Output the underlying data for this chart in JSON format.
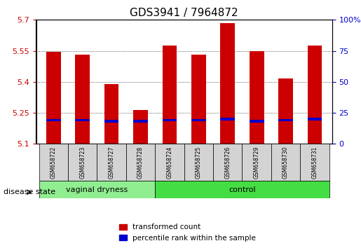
{
  "title": "GDS3941 / 7964872",
  "samples": [
    "GSM658722",
    "GSM658723",
    "GSM658727",
    "GSM658728",
    "GSM658724",
    "GSM658725",
    "GSM658726",
    "GSM658729",
    "GSM658730",
    "GSM658731"
  ],
  "red_values": [
    5.545,
    5.53,
    5.39,
    5.265,
    5.575,
    5.53,
    5.685,
    5.55,
    5.415,
    5.575
  ],
  "blue_values": [
    5.215,
    5.215,
    5.21,
    5.21,
    5.215,
    5.215,
    5.22,
    5.21,
    5.215,
    5.22
  ],
  "ymin": 5.1,
  "ymax": 5.7,
  "yticks_left": [
    5.1,
    5.25,
    5.4,
    5.55,
    5.7
  ],
  "yticks_right_vals": [
    5.1,
    5.25,
    5.4,
    5.55,
    5.7
  ],
  "yticks_right_labels": [
    "0",
    "25",
    "50",
    "75",
    "100%"
  ],
  "bar_color": "#cc0000",
  "blue_color": "#0000cc",
  "bar_width": 0.5,
  "group1_label": "vaginal dryness",
  "group2_label": "control",
  "group1_indices": [
    0,
    1,
    2,
    3
  ],
  "group2_indices": [
    4,
    5,
    6,
    7,
    8,
    9
  ],
  "group_label_prefix": "disease state",
  "legend_red_label": "transformed count",
  "legend_blue_label": "percentile rank within the sample",
  "group1_color": "#90ee90",
  "group2_color": "#00cc44",
  "background_color": "#ffffff",
  "grid_color": "#000000",
  "axis_label_color_left": "#cc0000",
  "axis_label_color_right": "#0000cc",
  "tick_label_bg": "#d3d3d3"
}
